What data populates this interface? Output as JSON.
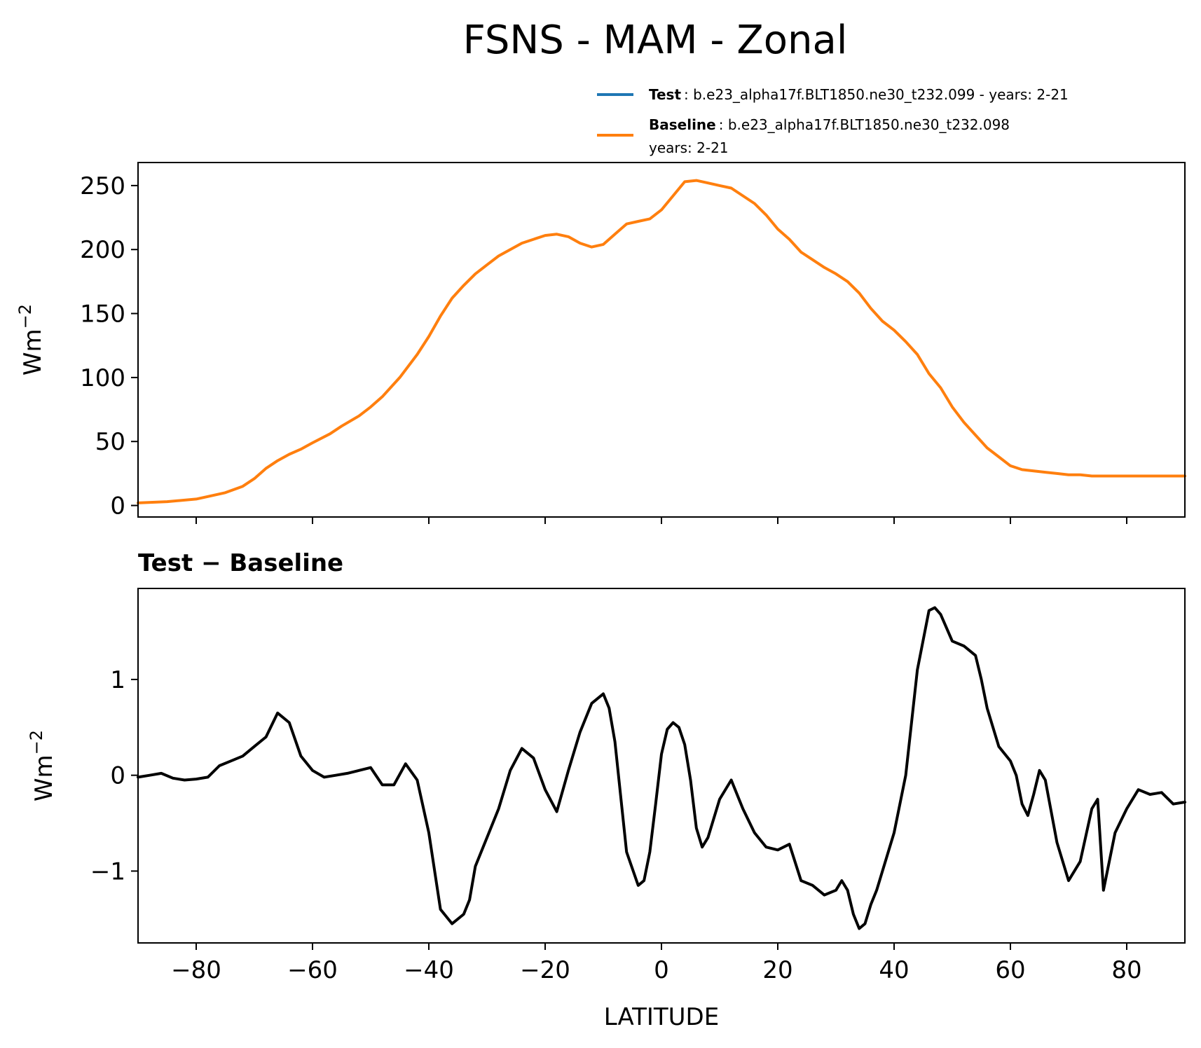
{
  "figure": {
    "title": "FSNS - MAM - Zonal",
    "colors": {
      "test": "#1f77b4",
      "baseline": "#ff7f0e",
      "diff": "#000000"
    }
  },
  "legend": {
    "test": {
      "label": "Test",
      "text": ": b.e23_alpha17f.BLT1850.ne30_t232.099 - years: 2-21"
    },
    "baseline": {
      "label": "Baseline",
      "text": ": b.e23_alpha17f.BLT1850.ne30_t232.098",
      "text2": "years: 2-21"
    }
  },
  "chart_data": [
    {
      "type": "line",
      "ylabel": "Wm",
      "ylabel_sup": "−2",
      "xlim": [
        -90,
        90
      ],
      "ylim": [
        -9,
        268
      ],
      "yticks": [
        0,
        50,
        100,
        150,
        200,
        250
      ],
      "ytick_labels": [
        "0",
        "50",
        "100",
        "150",
        "200",
        "250"
      ],
      "xticks": [
        -80,
        -60,
        -40,
        -20,
        0,
        20,
        40,
        60,
        80
      ],
      "series": [
        {
          "name": "Test",
          "x": [
            -90,
            -85,
            -80,
            -78,
            -75,
            -72,
            -70,
            -68,
            -66,
            -64,
            -62,
            -60,
            -57,
            -55,
            -52,
            -50,
            -48,
            -45,
            -42,
            -40,
            -38,
            -36,
            -34,
            -32,
            -30,
            -28,
            -26,
            -24,
            -22,
            -20,
            -18,
            -16,
            -14,
            -12,
            -10,
            -8,
            -6,
            -4,
            -2,
            0,
            2,
            4,
            6,
            8,
            10,
            12,
            14,
            16,
            18,
            20,
            22,
            24,
            26,
            28,
            30,
            32,
            34,
            36,
            38,
            40,
            42,
            44,
            46,
            48,
            50,
            52,
            54,
            56,
            58,
            60,
            62,
            64,
            66,
            68,
            70,
            72,
            74,
            76,
            78,
            80,
            82,
            84,
            86,
            88,
            90
          ],
          "y": [
            2,
            3,
            5,
            7,
            10,
            15,
            21,
            29,
            35,
            40,
            44,
            49,
            56,
            62,
            70,
            77,
            85,
            100,
            118,
            132,
            148,
            162,
            172,
            181,
            188,
            195,
            200,
            205,
            208,
            211,
            212,
            210,
            205,
            202,
            204,
            212,
            220,
            222,
            224,
            231,
            242,
            253,
            254,
            252,
            250,
            248,
            242,
            236,
            227,
            216,
            208,
            198,
            192,
            186,
            181,
            175,
            166,
            154,
            144,
            137,
            128,
            118,
            103,
            92,
            77,
            65,
            55,
            45,
            38,
            31,
            28,
            27,
            26,
            25,
            24,
            24,
            23,
            23,
            23,
            23,
            23,
            23,
            23,
            23,
            23
          ]
        },
        {
          "name": "Baseline",
          "x": [
            -90,
            -85,
            -80,
            -78,
            -75,
            -72,
            -70,
            -68,
            -66,
            -64,
            -62,
            -60,
            -57,
            -55,
            -52,
            -50,
            -48,
            -45,
            -42,
            -40,
            -38,
            -36,
            -34,
            -32,
            -30,
            -28,
            -26,
            -24,
            -22,
            -20,
            -18,
            -16,
            -14,
            -12,
            -10,
            -8,
            -6,
            -4,
            -2,
            0,
            2,
            4,
            6,
            8,
            10,
            12,
            14,
            16,
            18,
            20,
            22,
            24,
            26,
            28,
            30,
            32,
            34,
            36,
            38,
            40,
            42,
            44,
            46,
            48,
            50,
            52,
            54,
            56,
            58,
            60,
            62,
            64,
            66,
            68,
            70,
            72,
            74,
            76,
            78,
            80,
            82,
            84,
            86,
            88,
            90
          ],
          "y": [
            2,
            3,
            5,
            7,
            10,
            15,
            21,
            29,
            35,
            40,
            44,
            49,
            56,
            62,
            70,
            77,
            85,
            100,
            118,
            132,
            148,
            162,
            172,
            181,
            188,
            195,
            200,
            205,
            208,
            211,
            212,
            210,
            205,
            202,
            204,
            212,
            220,
            222,
            224,
            231,
            242,
            253,
            254,
            252,
            250,
            248,
            242,
            236,
            227,
            216,
            208,
            198,
            192,
            186,
            181,
            175,
            166,
            154,
            144,
            137,
            128,
            118,
            103,
            92,
            77,
            65,
            55,
            45,
            38,
            31,
            28,
            27,
            26,
            25,
            24,
            24,
            23,
            23,
            23,
            23,
            23,
            23,
            23,
            23,
            23
          ]
        }
      ]
    },
    {
      "type": "line",
      "title": "Test − Baseline",
      "xlabel": "LATITUDE",
      "ylabel": "Wm",
      "ylabel_sup": "−2",
      "xlim": [
        -90,
        90
      ],
      "ylim": [
        -1.75,
        1.95
      ],
      "yticks": [
        -1,
        0,
        1
      ],
      "ytick_labels": [
        "−1",
        "0",
        "1"
      ],
      "xticks": [
        -80,
        -60,
        -40,
        -20,
        0,
        20,
        40,
        60,
        80
      ],
      "xtick_labels": [
        "−80",
        "−60",
        "−40",
        "−20",
        "0",
        "20",
        "40",
        "60",
        "80"
      ],
      "series": [
        {
          "name": "Test − Baseline",
          "x": [
            -90,
            -88,
            -86,
            -84,
            -82,
            -80,
            -78,
            -76,
            -74,
            -72,
            -70,
            -68,
            -66,
            -64,
            -62,
            -60,
            -58,
            -56,
            -54,
            -52,
            -50,
            -48,
            -46,
            -44,
            -42,
            -40,
            -38,
            -36,
            -34,
            -33,
            -32,
            -30,
            -28,
            -26,
            -24,
            -22,
            -20,
            -18,
            -16,
            -14,
            -12,
            -10,
            -9,
            -8,
            -6,
            -4,
            -3,
            -2,
            -1,
            0,
            1,
            2,
            3,
            4,
            5,
            6,
            7,
            8,
            10,
            12,
            14,
            16,
            18,
            20,
            22,
            24,
            26,
            28,
            30,
            31,
            32,
            33,
            34,
            35,
            36,
            37,
            38,
            40,
            42,
            44,
            46,
            47,
            48,
            50,
            52,
            54,
            55,
            56,
            58,
            60,
            61,
            62,
            63,
            64,
            65,
            66,
            68,
            70,
            72,
            74,
            75,
            76,
            78,
            80,
            82,
            84,
            86,
            88,
            90
          ],
          "y": [
            -0.02,
            0.0,
            0.02,
            -0.03,
            -0.05,
            -0.04,
            -0.02,
            0.1,
            0.15,
            0.2,
            0.3,
            0.4,
            0.65,
            0.55,
            0.2,
            0.05,
            -0.02,
            0.0,
            0.02,
            0.05,
            0.08,
            -0.1,
            -0.1,
            0.12,
            -0.05,
            -0.6,
            -1.4,
            -1.55,
            -1.45,
            -1.3,
            -0.95,
            -0.65,
            -0.35,
            0.05,
            0.28,
            0.18,
            -0.15,
            -0.38,
            0.05,
            0.45,
            0.75,
            0.85,
            0.7,
            0.35,
            -0.8,
            -1.15,
            -1.1,
            -0.8,
            -0.3,
            0.22,
            0.48,
            0.55,
            0.5,
            0.32,
            -0.05,
            -0.55,
            -0.75,
            -0.65,
            -0.25,
            -0.05,
            -0.35,
            -0.6,
            -0.75,
            -0.78,
            -0.72,
            -1.1,
            -1.15,
            -1.25,
            -1.2,
            -1.1,
            -1.2,
            -1.45,
            -1.6,
            -1.55,
            -1.35,
            -1.2,
            -1.0,
            -0.6,
            0.0,
            1.1,
            1.72,
            1.75,
            1.68,
            1.4,
            1.35,
            1.25,
            1.0,
            0.7,
            0.3,
            0.15,
            0.0,
            -0.3,
            -0.42,
            -0.2,
            0.05,
            -0.05,
            -0.7,
            -1.1,
            -0.9,
            -0.35,
            -0.25,
            -1.2,
            -0.6,
            -0.35,
            -0.15,
            -0.2,
            -0.18,
            -0.3,
            -0.28
          ]
        }
      ]
    }
  ]
}
